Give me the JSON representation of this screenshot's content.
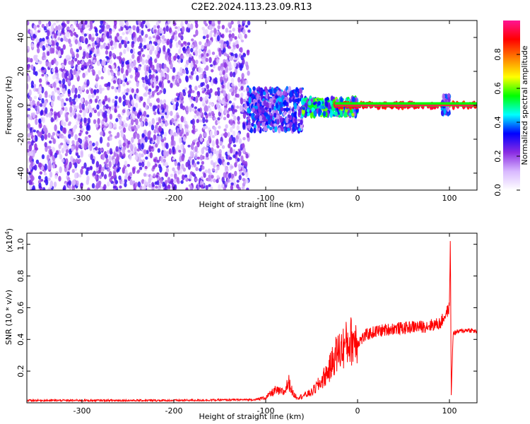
{
  "page": {
    "title": "C2E2.2024.113.23.09.R13"
  },
  "chart_data": [
    {
      "type": "heatmap",
      "title": "C2E2.2024.113.23.09.R13",
      "xlabel": "Height of straight line (km)",
      "ylabel": "Frequency (Hz)",
      "xlim": [
        -360,
        130
      ],
      "ylim": [
        -50,
        50
      ],
      "x_ticks": [
        -300,
        -200,
        -100,
        0,
        100
      ],
      "y_ticks": [
        -40,
        -20,
        0,
        20,
        40
      ],
      "colorbar": {
        "label": "Normalized spectral amplitude",
        "range": [
          0,
          1
        ],
        "ticks": [
          0.0,
          0.2,
          0.4,
          0.6,
          0.8
        ],
        "colors": [
          "#ffffff",
          "#d8b8ff",
          "#8a2be2",
          "#0000ff",
          "#00ffff",
          "#00ff00",
          "#ffff00",
          "#ff8000",
          "#ff0000",
          "#ff1493"
        ]
      },
      "regions": [
        {
          "x_range": [
            -360,
            -118
          ],
          "freq_range": [
            -50,
            50
          ],
          "amplitude": 0.15,
          "description": "noise"
        },
        {
          "x_range": [
            -120,
            -60
          ],
          "freq_range": [
            -15,
            10
          ],
          "amplitude": 0.3
        },
        {
          "x_range": [
            -60,
            0
          ],
          "freq_range": [
            -6,
            4
          ],
          "amplitude": 0.45
        },
        {
          "x_range": [
            -25,
            130
          ],
          "freq_range": [
            -1,
            1
          ],
          "amplitude": 0.95
        },
        {
          "x_range": [
            92,
            100
          ],
          "freq_range": [
            -5,
            6
          ],
          "amplitude": 0.3
        }
      ]
    },
    {
      "type": "line",
      "xlabel": "Height of straight line (km)",
      "ylabel": "SNR (10 * v/v)",
      "y_scale_label": "(x10",
      "y_scale_exp": "4",
      "y_scale_close": ")",
      "xlim": [
        -360,
        130
      ],
      "ylim": [
        0,
        1.07
      ],
      "x_ticks": [
        -300,
        -200,
        -100,
        0,
        100
      ],
      "y_ticks": [
        0.2,
        0.4,
        0.6,
        0.8,
        1.0
      ],
      "line_color": "#ff0000",
      "series": [
        {
          "x": [
            -360,
            -300,
            -200,
            -110,
            -100,
            -90,
            -80,
            -75,
            -70,
            -65,
            -60,
            -50,
            -40,
            -30,
            -25,
            -20,
            -10,
            0,
            10,
            20,
            30,
            40,
            50,
            60,
            70,
            80,
            90,
            95,
            100,
            101,
            102,
            104,
            110,
            120,
            130
          ],
          "y": [
            0.015,
            0.015,
            0.015,
            0.02,
            0.03,
            0.07,
            0.06,
            0.12,
            0.05,
            0.03,
            0.04,
            0.06,
            0.12,
            0.2,
            0.27,
            0.3,
            0.35,
            0.38,
            0.43,
            0.45,
            0.46,
            0.47,
            0.47,
            0.48,
            0.48,
            0.49,
            0.5,
            0.55,
            0.6,
            1.05,
            0.05,
            0.44,
            0.45,
            0.46,
            0.45
          ]
        }
      ]
    }
  ]
}
